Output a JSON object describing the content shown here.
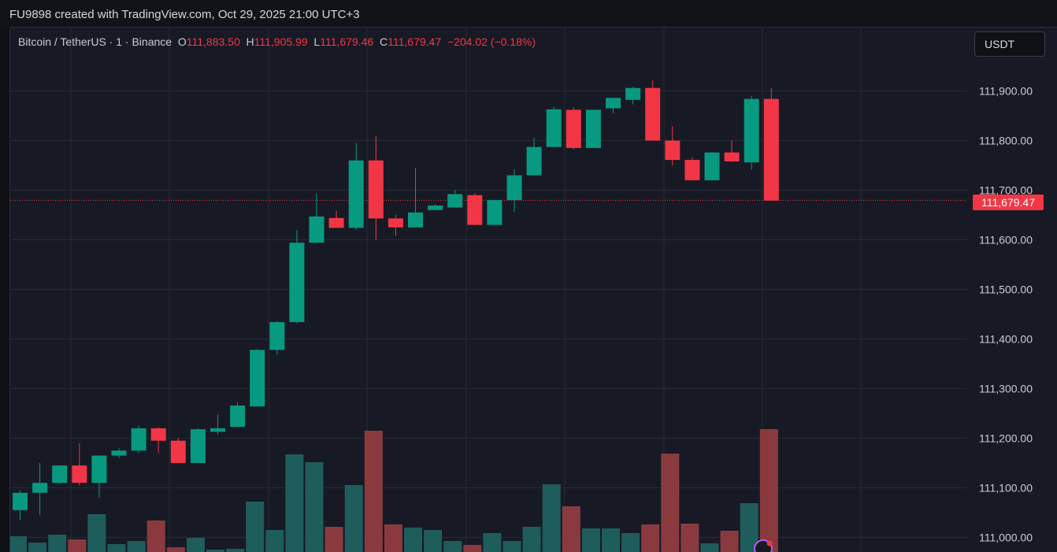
{
  "header": {
    "caption": "FU9898 created with TradingView.com, Oct 29, 2025 21:00 UTC+3"
  },
  "legend": {
    "symbol": "Bitcoin / TetherUS · 1 · Binance",
    "o_label": "O",
    "o_value": "111,883.50",
    "h_label": "H",
    "h_value": "111,905.99",
    "l_label": "L",
    "l_value": "111,679.46",
    "c_label": "C",
    "c_value": "111,679.47",
    "change": "−204.02 (−0.18%)"
  },
  "currency_button": "USDT",
  "last_price_label": "111,679.47",
  "colors": {
    "up": "#089981",
    "down": "#f23645",
    "vol_up": "#1f5c5c",
    "vol_down": "#8a3a3f",
    "grid": "#262a35"
  },
  "chart_data": {
    "type": "candlestick",
    "ylim": [
      111000,
      111960
    ],
    "yticks": [
      {
        "value": 111900,
        "label": "111,900.00"
      },
      {
        "value": 111800,
        "label": "111,800.00"
      },
      {
        "value": 111700,
        "label": "111,700.00"
      },
      {
        "value": 111600,
        "label": "111,600.00"
      },
      {
        "value": 111500,
        "label": "111,500.00"
      },
      {
        "value": 111400,
        "label": "111,400.00"
      },
      {
        "value": 111300,
        "label": "111,300.00"
      },
      {
        "value": 111200,
        "label": "111,200.00"
      },
      {
        "value": 111100,
        "label": "111,100.00"
      },
      {
        "value": 111000,
        "label": "111,000.00"
      }
    ],
    "last_close": 111679.47,
    "candles": [
      {
        "o": 111055,
        "h": 111095,
        "l": 111035,
        "c": 111090
      },
      {
        "o": 111090,
        "h": 111150,
        "l": 111045,
        "c": 111110
      },
      {
        "o": 111110,
        "h": 111145,
        "l": 111108,
        "c": 111145
      },
      {
        "o": 111145,
        "h": 111190,
        "l": 111105,
        "c": 111110
      },
      {
        "o": 111110,
        "h": 111165,
        "l": 111080,
        "c": 111165
      },
      {
        "o": 111165,
        "h": 111180,
        "l": 111160,
        "c": 111175
      },
      {
        "o": 111175,
        "h": 111225,
        "l": 111170,
        "c": 111220
      },
      {
        "o": 111220,
        "h": 111222,
        "l": 111170,
        "c": 111195
      },
      {
        "o": 111195,
        "h": 111200,
        "l": 111150,
        "c": 111150
      },
      {
        "o": 111150,
        "h": 111220,
        "l": 111150,
        "c": 111218
      },
      {
        "o": 111213,
        "h": 111247,
        "l": 111207,
        "c": 111220
      },
      {
        "o": 111223,
        "h": 111272,
        "l": 111222,
        "c": 111266
      },
      {
        "o": 111264,
        "h": 111380,
        "l": 111264,
        "c": 111378
      },
      {
        "o": 111378,
        "h": 111436,
        "l": 111368,
        "c": 111434
      },
      {
        "o": 111434,
        "h": 111620,
        "l": 111432,
        "c": 111594
      },
      {
        "o": 111594,
        "h": 111694,
        "l": 111594,
        "c": 111647
      },
      {
        "o": 111644,
        "h": 111658,
        "l": 111625,
        "c": 111624
      },
      {
        "o": 111624,
        "h": 111795,
        "l": 111620,
        "c": 111760
      },
      {
        "o": 111760,
        "h": 111810,
        "l": 111600,
        "c": 111643
      },
      {
        "o": 111643,
        "h": 111650,
        "l": 111608,
        "c": 111625
      },
      {
        "o": 111625,
        "h": 111745,
        "l": 111625,
        "c": 111655
      },
      {
        "o": 111660,
        "h": 111672,
        "l": 111660,
        "c": 111669
      },
      {
        "o": 111665,
        "h": 111701,
        "l": 111665,
        "c": 111692
      },
      {
        "o": 111690,
        "h": 111694,
        "l": 111629,
        "c": 111630
      },
      {
        "o": 111630,
        "h": 111679,
        "l": 111630,
        "c": 111680
      },
      {
        "o": 111680,
        "h": 111742,
        "l": 111657,
        "c": 111730
      },
      {
        "o": 111730,
        "h": 111806,
        "l": 111730,
        "c": 111787
      },
      {
        "o": 111787,
        "h": 111868,
        "l": 111787,
        "c": 111863
      },
      {
        "o": 111862,
        "h": 111867,
        "l": 111782,
        "c": 111785
      },
      {
        "o": 111785,
        "h": 111862,
        "l": 111785,
        "c": 111862
      },
      {
        "o": 111865,
        "h": 111887,
        "l": 111855,
        "c": 111886
      },
      {
        "o": 111882,
        "h": 111908,
        "l": 111873,
        "c": 111906
      },
      {
        "o": 111906,
        "h": 111921,
        "l": 111800,
        "c": 111800
      },
      {
        "o": 111800,
        "h": 111829,
        "l": 111750,
        "c": 111761
      },
      {
        "o": 111761,
        "h": 111766,
        "l": 111720,
        "c": 111720
      },
      {
        "o": 111720,
        "h": 111777,
        "l": 111720,
        "c": 111776
      },
      {
        "o": 111776,
        "h": 111800,
        "l": 111757,
        "c": 111758
      },
      {
        "o": 111756,
        "h": 111890,
        "l": 111742,
        "c": 111884
      },
      {
        "o": 111884,
        "h": 111906,
        "l": 111679,
        "c": 111679
      }
    ],
    "volume": [
      20,
      12,
      22,
      16,
      48,
      10,
      14,
      40,
      6,
      18,
      3,
      4,
      64,
      28,
      124,
      114,
      32,
      85,
      154,
      35,
      31,
      28,
      14,
      9,
      24,
      14,
      32,
      86,
      58,
      30,
      30,
      24,
      35,
      125,
      36,
      11,
      27,
      62,
      156
    ]
  }
}
